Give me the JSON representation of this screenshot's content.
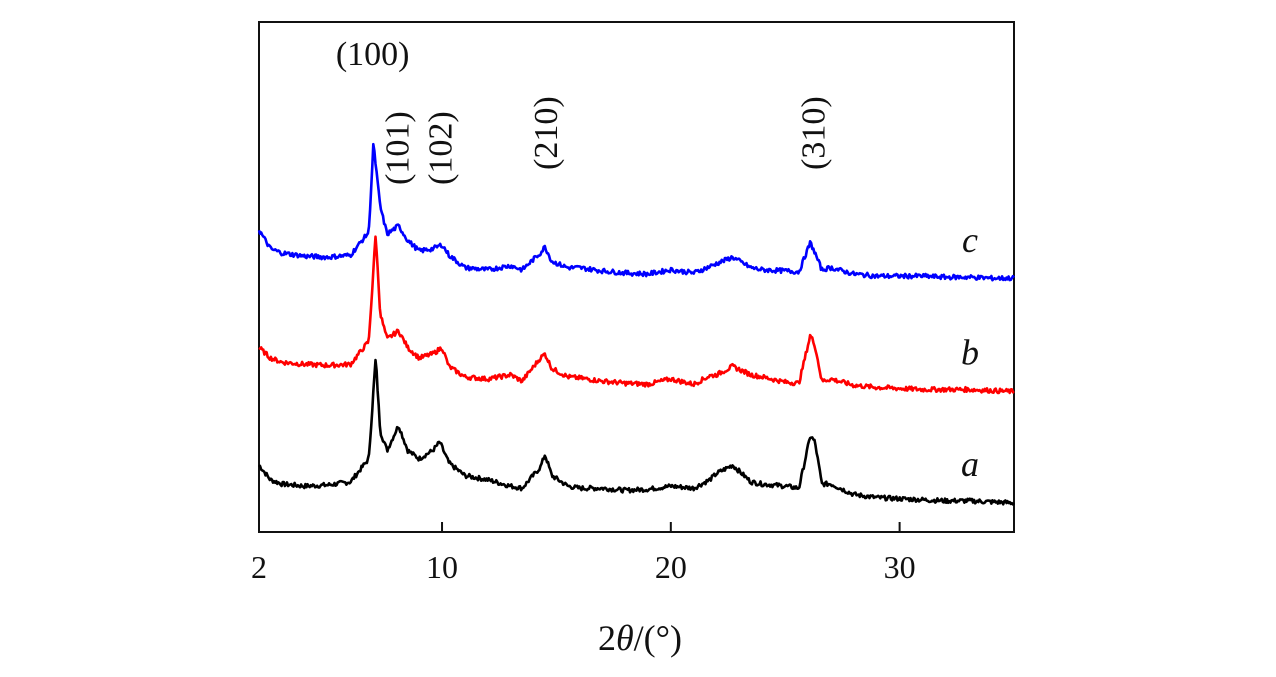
{
  "chart_data": {
    "type": "line",
    "title": "",
    "xlabel": "2θ/(°)",
    "xlabel_parts": {
      "prefix": "2",
      "theta": "θ",
      "suffix": "/(°)"
    },
    "ylabel": "",
    "xlim": [
      2,
      35
    ],
    "x_ticks": [
      2,
      10,
      20,
      30
    ],
    "x_tick_labels": [
      "2",
      "10",
      "20",
      "30"
    ],
    "y_ticks_shown": false,
    "units": "arbitrary intensity (offset)",
    "series": [
      {
        "name": "a",
        "label": "a",
        "color": "#000000",
        "offset": 0,
        "points": [
          [
            2,
            1.9
          ],
          [
            2.5,
            1.2
          ],
          [
            3,
            1.0
          ],
          [
            4,
            0.9
          ],
          [
            5,
            0.95
          ],
          [
            6,
            1.1
          ],
          [
            6.8,
            2.2
          ],
          [
            7.1,
            7.0
          ],
          [
            7.3,
            3.5
          ],
          [
            7.6,
            2.6
          ],
          [
            8.1,
            3.8
          ],
          [
            8.5,
            2.6
          ],
          [
            9,
            2.2
          ],
          [
            9.6,
            2.6
          ],
          [
            9.9,
            3.0
          ],
          [
            10.3,
            2.0
          ],
          [
            11,
            1.4
          ],
          [
            12,
            1.2
          ],
          [
            13,
            0.9
          ],
          [
            13.5,
            0.8
          ],
          [
            14.3,
            1.8
          ],
          [
            14.5,
            2.4
          ],
          [
            14.8,
            1.4
          ],
          [
            15.5,
            0.9
          ],
          [
            16,
            0.8
          ],
          [
            17,
            0.8
          ],
          [
            18,
            0.7
          ],
          [
            19,
            0.75
          ],
          [
            20,
            0.9
          ],
          [
            21,
            0.8
          ],
          [
            21.7,
            1.2
          ],
          [
            22,
            1.5
          ],
          [
            22.7,
            1.9
          ],
          [
            23.5,
            1.1
          ],
          [
            24,
            1.0
          ],
          [
            25,
            0.9
          ],
          [
            25.6,
            0.8
          ],
          [
            26.1,
            3.3
          ],
          [
            26.3,
            3.0
          ],
          [
            26.6,
            1.0
          ],
          [
            27,
            1.0
          ],
          [
            28,
            0.5
          ],
          [
            29,
            0.35
          ],
          [
            30,
            0.3
          ],
          [
            31,
            0.25
          ],
          [
            32,
            0.2
          ],
          [
            33,
            0.2
          ],
          [
            34,
            0.15
          ],
          [
            35,
            0.1
          ]
        ]
      },
      {
        "name": "b",
        "label": "b",
        "color": "#ff0000",
        "offset": 5.6,
        "points": [
          [
            2,
            1.9
          ],
          [
            2.5,
            1.4
          ],
          [
            3,
            1.2
          ],
          [
            4,
            1.1
          ],
          [
            5,
            1.05
          ],
          [
            6,
            1.1
          ],
          [
            6.8,
            2.2
          ],
          [
            7.1,
            7.3
          ],
          [
            7.3,
            3.5
          ],
          [
            7.6,
            2.3
          ],
          [
            8.1,
            2.7
          ],
          [
            8.5,
            1.9
          ],
          [
            9,
            1.4
          ],
          [
            9.6,
            1.6
          ],
          [
            10,
            1.9
          ],
          [
            10.3,
            1.0
          ],
          [
            11,
            0.5
          ],
          [
            12,
            0.4
          ],
          [
            13,
            0.6
          ],
          [
            13.5,
            0.3
          ],
          [
            14.3,
            1.4
          ],
          [
            14.5,
            1.6
          ],
          [
            14.8,
            0.9
          ],
          [
            15.5,
            0.5
          ],
          [
            16,
            0.45
          ],
          [
            17,
            0.3
          ],
          [
            18,
            0.2
          ],
          [
            19,
            0.15
          ],
          [
            20,
            0.4
          ],
          [
            21,
            0.15
          ],
          [
            21.7,
            0.55
          ],
          [
            22,
            0.6
          ],
          [
            22.7,
            1.0
          ],
          [
            23.5,
            0.6
          ],
          [
            24,
            0.5
          ],
          [
            25,
            0.25
          ],
          [
            25.6,
            0.2
          ],
          [
            26.1,
            2.5
          ],
          [
            26.3,
            2.0
          ],
          [
            26.6,
            0.3
          ],
          [
            27,
            0.4
          ],
          [
            28,
            0.1
          ],
          [
            29,
            0
          ],
          [
            30,
            -0.05
          ],
          [
            31,
            -0.1
          ],
          [
            32,
            -0.1
          ],
          [
            33,
            -0.1
          ],
          [
            34,
            -0.15
          ],
          [
            35,
            -0.2
          ]
        ]
      },
      {
        "name": "c",
        "label": "c",
        "color": "#0000ff",
        "offset": 11.0,
        "points": [
          [
            2,
            2.1
          ],
          [
            2.5,
            1.2
          ],
          [
            3,
            1.0
          ],
          [
            4,
            0.85
          ],
          [
            5,
            0.8
          ],
          [
            6,
            0.9
          ],
          [
            6.8,
            2.0
          ],
          [
            7.0,
            6.2
          ],
          [
            7.3,
            3.2
          ],
          [
            7.6,
            1.9
          ],
          [
            8.1,
            2.3
          ],
          [
            8.5,
            1.6
          ],
          [
            9,
            1.1
          ],
          [
            9.6,
            1.2
          ],
          [
            10,
            1.4
          ],
          [
            10.3,
            0.9
          ],
          [
            11,
            0.3
          ],
          [
            12,
            0.2
          ],
          [
            13,
            0.4
          ],
          [
            13.5,
            0.2
          ],
          [
            14.3,
            1.0
          ],
          [
            14.5,
            1.3
          ],
          [
            14.8,
            0.6
          ],
          [
            15.5,
            0.3
          ],
          [
            16,
            0.3
          ],
          [
            17,
            0.15
          ],
          [
            18,
            0.05
          ],
          [
            19,
            0
          ],
          [
            20,
            0.2
          ],
          [
            21,
            0.05
          ],
          [
            21.7,
            0.35
          ],
          [
            22,
            0.5
          ],
          [
            22.7,
            0.8
          ],
          [
            23.5,
            0.3
          ],
          [
            24,
            0.2
          ],
          [
            25,
            0.15
          ],
          [
            25.6,
            0.1
          ],
          [
            26.1,
            1.5
          ],
          [
            26.3,
            1.0
          ],
          [
            26.6,
            0.2
          ],
          [
            27,
            0.3
          ],
          [
            28,
            0
          ],
          [
            29,
            -0.1
          ],
          [
            30,
            -0.1
          ],
          [
            31,
            -0.1
          ],
          [
            32,
            -0.15
          ],
          [
            33,
            -0.15
          ],
          [
            34,
            -0.2
          ],
          [
            35,
            -0.2
          ]
        ]
      }
    ],
    "annotations": [
      {
        "text": "(100)",
        "x": 7.1,
        "rotated": false
      },
      {
        "text": "(101)",
        "x": 8.0,
        "rotated": true
      },
      {
        "text": "(102)",
        "x": 9.9,
        "rotated": true
      },
      {
        "text": "(210)",
        "x": 14.5,
        "rotated": true
      },
      {
        "text": "(310)",
        "x": 26.2,
        "rotated": true
      }
    ]
  }
}
